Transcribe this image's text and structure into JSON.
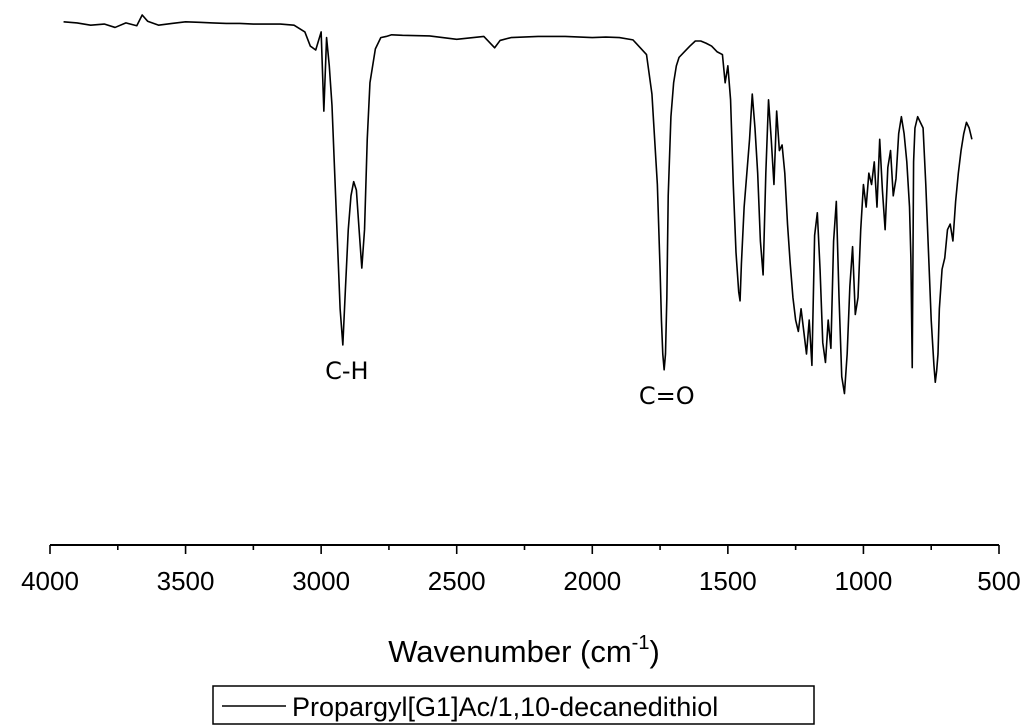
{
  "chart_data": {
    "type": "line",
    "title": "",
    "xlabel": "Wavenumber (cm",
    "xlabel_sup": "-1",
    "xlabel_close": ")",
    "ylabel": "",
    "xlim": [
      4000,
      500
    ],
    "ylim": [
      0,
      100
    ],
    "x_reversed": true,
    "y_axis_visible": false,
    "grid": false,
    "xticks": [
      4000,
      3500,
      3000,
      2500,
      2000,
      1500,
      1000,
      500
    ],
    "xtick_labels": [
      "4000",
      "3500",
      "3000",
      "2500",
      "2000",
      "1500",
      "1000",
      "500"
    ],
    "legend_position": "bottom-center",
    "series": [
      {
        "name": "Propargyl[G1]Ac/1,10-decanedithiol",
        "color": "#000000",
        "x": [
          3950,
          3900,
          3850,
          3800,
          3760,
          3720,
          3680,
          3660,
          3640,
          3600,
          3550,
          3500,
          3450,
          3400,
          3350,
          3300,
          3250,
          3200,
          3150,
          3100,
          3060,
          3040,
          3020,
          3000,
          2990,
          2980,
          2970,
          2960,
          2950,
          2940,
          2930,
          2920,
          2910,
          2900,
          2890,
          2880,
          2870,
          2860,
          2850,
          2840,
          2830,
          2820,
          2800,
          2780,
          2760,
          2740,
          2700,
          2600,
          2500,
          2400,
          2360,
          2340,
          2300,
          2200,
          2100,
          2000,
          1950,
          1900,
          1850,
          1800,
          1780,
          1760,
          1750,
          1745,
          1740,
          1735,
          1730,
          1725,
          1720,
          1710,
          1700,
          1690,
          1680,
          1660,
          1640,
          1620,
          1600,
          1580,
          1560,
          1540,
          1520,
          1510,
          1500,
          1490,
          1480,
          1470,
          1460,
          1455,
          1450,
          1440,
          1430,
          1420,
          1410,
          1400,
          1390,
          1380,
          1370,
          1360,
          1350,
          1340,
          1330,
          1320,
          1310,
          1300,
          1290,
          1280,
          1270,
          1260,
          1250,
          1240,
          1230,
          1220,
          1210,
          1200,
          1190,
          1180,
          1170,
          1160,
          1150,
          1140,
          1130,
          1120,
          1110,
          1100,
          1090,
          1080,
          1070,
          1060,
          1050,
          1040,
          1030,
          1020,
          1010,
          1000,
          990,
          980,
          970,
          960,
          950,
          940,
          930,
          920,
          910,
          900,
          890,
          880,
          870,
          860,
          850,
          840,
          830,
          825,
          820,
          815,
          810,
          800,
          790,
          780,
          770,
          760,
          750,
          740,
          735,
          730,
          725,
          720,
          710,
          700,
          690,
          680,
          670,
          660,
          650,
          640,
          630,
          620,
          610,
          600
        ],
        "y": [
          98.8,
          98.6,
          98.2,
          98.4,
          97.8,
          98.6,
          98.1,
          100.0,
          98.9,
          98.2,
          98.5,
          98.8,
          98.7,
          98.6,
          98.5,
          98.5,
          98.4,
          98.4,
          98.4,
          98.2,
          97.0,
          94.5,
          93.8,
          97.0,
          83.0,
          96.0,
          91.0,
          84.0,
          72.0,
          60.0,
          48.0,
          41.6,
          52.0,
          62.0,
          68.0,
          70.5,
          69.0,
          62.0,
          55.2,
          62.0,
          78.0,
          88.0,
          94.0,
          96.0,
          96.2,
          96.5,
          96.4,
          96.3,
          95.7,
          96.2,
          94.2,
          95.5,
          96.0,
          96.2,
          96.2,
          96.0,
          96.1,
          96.0,
          95.6,
          93.0,
          86.0,
          70.0,
          55.0,
          46.0,
          40.0,
          37.2,
          40.0,
          50.0,
          68.0,
          82.0,
          88.0,
          91.0,
          92.5,
          93.5,
          94.5,
          95.4,
          95.4,
          95.0,
          94.5,
          93.5,
          93.0,
          88.0,
          91.0,
          85.0,
          70.0,
          58.0,
          51.0,
          49.4,
          56.0,
          66.0,
          72.0,
          78.0,
          86.0,
          80.0,
          72.0,
          60.0,
          54.0,
          72.0,
          85.0,
          78.0,
          70.0,
          83.0,
          76.0,
          77.0,
          72.0,
          63.0,
          56.0,
          50.0,
          46.0,
          44.0,
          48.0,
          44.0,
          40.0,
          46.0,
          38.0,
          61.0,
          65.0,
          55.0,
          42.0,
          38.5,
          46.0,
          41.0,
          60.0,
          67.0,
          50.0,
          36.0,
          33.0,
          40.0,
          52.0,
          59.0,
          47.0,
          50.0,
          62.0,
          70.0,
          66.0,
          72.0,
          70.0,
          74.0,
          66.0,
          78.0,
          69.0,
          62.0,
          73.0,
          76.0,
          68.0,
          71.0,
          79.0,
          82.0,
          79.0,
          74.0,
          66.0,
          57.0,
          37.6,
          74.0,
          80.0,
          82.0,
          81.0,
          80.0,
          70.0,
          58.0,
          46.0,
          38.0,
          35.0,
          37.0,
          40.0,
          48.0,
          55.0,
          57.0,
          62.0,
          63.0,
          60.0,
          67.0,
          72.0,
          76.0,
          79.0,
          81.0,
          80.0,
          78.0
        ]
      }
    ],
    "annotations": [
      {
        "text": "C-H",
        "x": 2920,
        "y": 41.6
      },
      {
        "text": "C=O",
        "x": 1740,
        "y": 37.2
      }
    ]
  }
}
